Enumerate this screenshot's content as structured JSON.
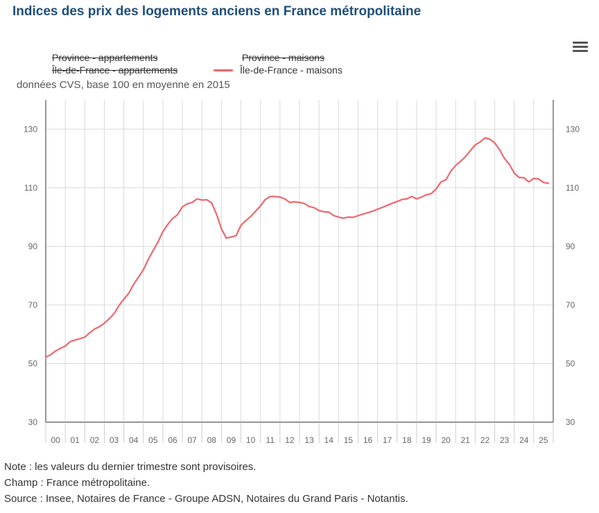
{
  "page": {
    "title": "Indices des prix des logements anciens en France métropolitaine",
    "subtitle": "données CVS, base 100 en moyenne en 2015",
    "menu_icon": "hamburger-menu-icon"
  },
  "legend": [
    {
      "label": "Province - appartements",
      "hidden": true
    },
    {
      "label": "Province - maisons",
      "hidden": true
    },
    {
      "label": "Île-de-France - appartements",
      "hidden": true
    },
    {
      "label": "Île-de-France - maisons",
      "hidden": false,
      "color": "#f0666b"
    }
  ],
  "notes": [
    "Note : les valeurs du dernier trimestre sont provisoires.",
    "Champ : France métropolitaine.",
    "Source : Insee, Notaires de France - Groupe ADSN, Notaires du Grand Paris - Notantis."
  ],
  "colors": {
    "title": "#1f4e79",
    "series_line": "#f0666b",
    "grid": "#d9d9d9",
    "axis": "#555555"
  },
  "chart_data": {
    "type": "line",
    "title": "Indices des prix des logements anciens en France métropolitaine",
    "subtitle": "données CVS, base 100 en moyenne en 2015",
    "xlabel": "",
    "ylabel": "",
    "ylim": [
      30,
      140
    ],
    "yticks": [
      30,
      50,
      70,
      90,
      110,
      130
    ],
    "grid": true,
    "legend_position": "top",
    "x_tick_labels": [
      "00",
      "01",
      "02",
      "03",
      "04",
      "05",
      "06",
      "07",
      "08",
      "09",
      "10",
      "11",
      "12",
      "13",
      "14",
      "15",
      "16",
      "17",
      "18",
      "19",
      "20",
      "21",
      "22",
      "23",
      "24",
      "25"
    ],
    "x_start_year": 2000,
    "x_step": 0.25,
    "series": [
      {
        "name": "Île-de-France - maisons",
        "values": [
          52.2,
          53.0,
          54.3,
          55.2,
          56.0,
          57.5,
          58.0,
          58.5,
          59.0,
          60.5,
          61.8,
          62.6,
          63.8,
          65.3,
          67.0,
          69.8,
          72.0,
          74.0,
          77.0,
          79.5,
          82.0,
          85.5,
          88.5,
          91.5,
          95.0,
          97.5,
          99.5,
          100.8,
          103.5,
          104.5,
          105.0,
          106.2,
          105.8,
          105.9,
          104.8,
          101.0,
          96.0,
          92.8,
          93.2,
          93.6,
          97.2,
          98.8,
          100.2,
          102.0,
          103.8,
          106.0,
          107.0,
          107.0,
          106.8,
          106.2,
          105.0,
          105.2,
          105.0,
          104.6,
          103.6,
          103.2,
          102.2,
          101.8,
          101.7,
          100.5,
          100.0,
          99.6,
          100.0,
          99.9,
          100.5,
          101.0,
          101.5,
          102.0,
          102.7,
          103.3,
          104.0,
          104.7,
          105.3,
          106.0,
          106.2,
          107.0,
          106.2,
          106.8,
          107.6,
          108.0,
          109.6,
          112.0,
          112.7,
          115.6,
          117.6,
          119.0,
          120.6,
          122.6,
          124.6,
          125.6,
          127.0,
          126.6,
          125.3,
          123.0,
          120.0,
          118.0,
          115.0,
          113.5,
          113.4,
          112.0,
          113.2,
          113.0,
          111.8,
          111.5
        ]
      }
    ]
  }
}
